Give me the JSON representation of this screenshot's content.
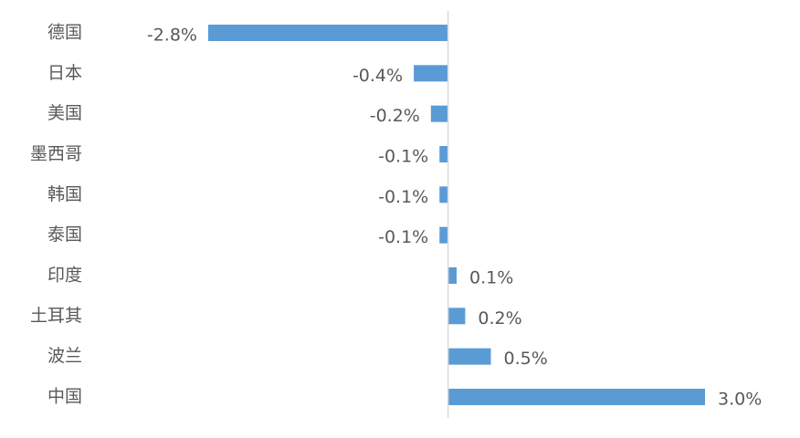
{
  "chart_data": {
    "type": "bar",
    "orientation": "horizontal",
    "categories": [
      "德国",
      "日本",
      "美国",
      "墨西哥",
      "韩国",
      "泰国",
      "印度",
      "土耳其",
      "波兰",
      "中国"
    ],
    "values": [
      -2.8,
      -0.4,
      -0.2,
      -0.1,
      -0.1,
      -0.1,
      0.1,
      0.2,
      0.5,
      3.0
    ],
    "value_labels": [
      "-2.8%",
      "-0.4%",
      "-0.2%",
      "-0.1%",
      "-0.1%",
      "-0.1%",
      "0.1%",
      "0.2%",
      "0.5%",
      "3.0%"
    ],
    "color": "#5b9bd5"
  }
}
